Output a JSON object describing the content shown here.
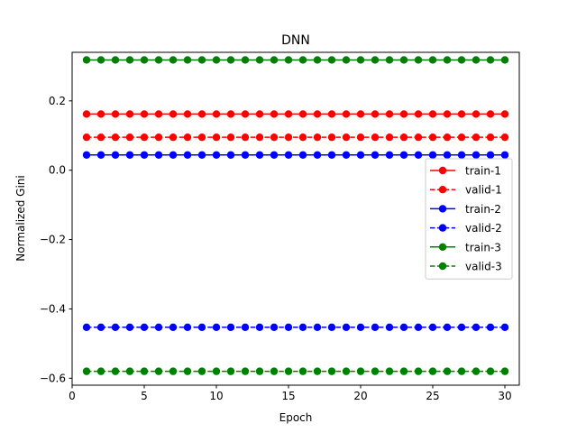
{
  "chart_data": {
    "type": "line",
    "title": "DNN",
    "xlabel": "Epoch",
    "ylabel": "Normalized Gini",
    "xlim": [
      0,
      31
    ],
    "ylim": [
      -0.62,
      0.34
    ],
    "xticks": [
      0,
      5,
      10,
      15,
      20,
      25,
      30
    ],
    "xtick_labels": [
      "0",
      "5",
      "10",
      "15",
      "20",
      "25",
      "30"
    ],
    "yticks": [
      -0.6,
      -0.4,
      -0.2,
      0.0,
      0.2
    ],
    "ytick_labels": [
      "−0.6",
      "−0.4",
      "−0.2",
      "0.0",
      "0.2"
    ],
    "grid": false,
    "legend_position": "center-right",
    "x": [
      1,
      2,
      3,
      4,
      5,
      6,
      7,
      8,
      9,
      10,
      11,
      12,
      13,
      14,
      15,
      16,
      17,
      18,
      19,
      20,
      21,
      22,
      23,
      24,
      25,
      26,
      27,
      28,
      29,
      30
    ],
    "series": [
      {
        "name": "train-1",
        "color": "#ff0000",
        "style": "solid",
        "marker": "circle",
        "value": 0.162
      },
      {
        "name": "valid-1",
        "color": "#ff0000",
        "style": "dashed",
        "marker": "circle",
        "value": 0.095
      },
      {
        "name": "train-2",
        "color": "#0000ff",
        "style": "solid",
        "marker": "circle",
        "value": 0.044
      },
      {
        "name": "valid-2",
        "color": "#0000ff",
        "style": "dashed",
        "marker": "circle",
        "value": -0.453
      },
      {
        "name": "train-3",
        "color": "#008000",
        "style": "solid",
        "marker": "circle",
        "value": 0.318
      },
      {
        "name": "valid-3",
        "color": "#008000",
        "style": "dashed",
        "marker": "circle",
        "value": -0.58
      }
    ]
  }
}
